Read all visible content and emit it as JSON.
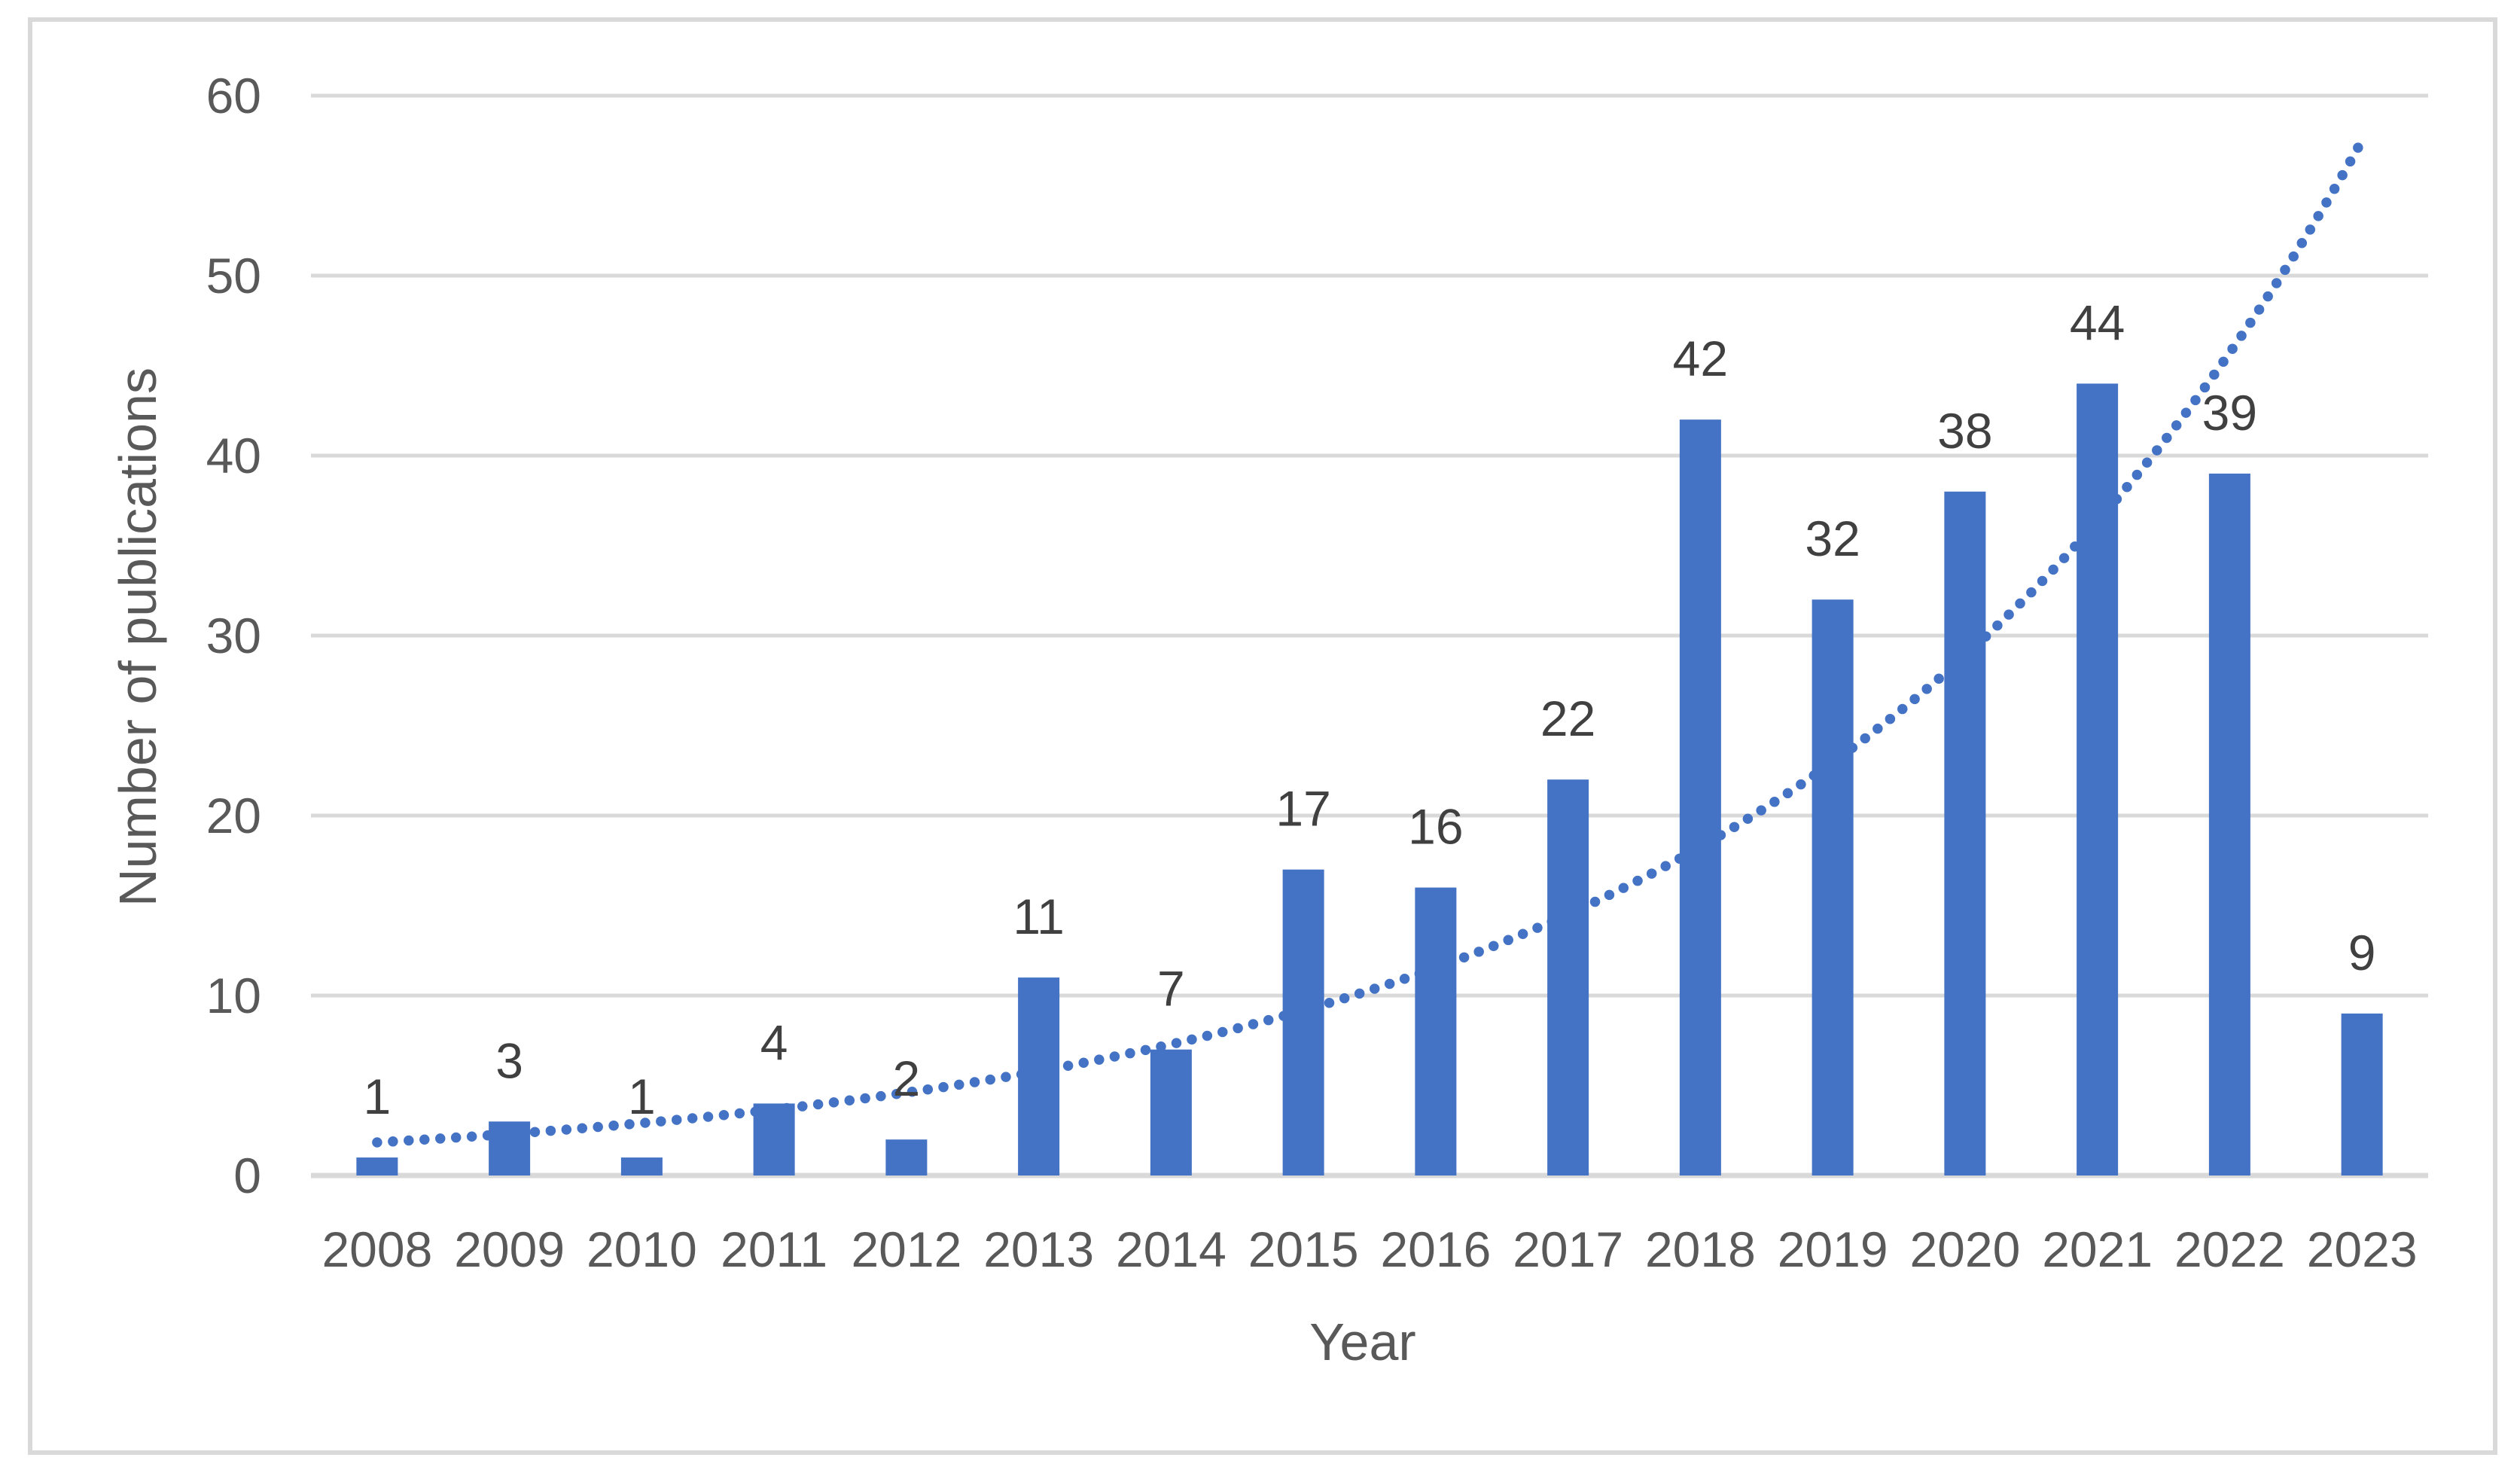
{
  "figure": {
    "x_axis_title": "Year",
    "y_axis_title": "Number of publications"
  },
  "chart_data": {
    "type": "bar",
    "title": "",
    "categories": [
      "2008",
      "2009",
      "2010",
      "2011",
      "2012",
      "2013",
      "2014",
      "2015",
      "2016",
      "2017",
      "2018",
      "2019",
      "2020",
      "2021",
      "2022",
      "2023"
    ],
    "values": [
      1,
      3,
      1,
      4,
      2,
      11,
      7,
      17,
      16,
      22,
      42,
      32,
      38,
      44,
      39,
      9
    ],
    "data_labels": [
      "1",
      "3",
      "1",
      "4",
      "2",
      "11",
      "7",
      "17",
      "16",
      "22",
      "42",
      "32",
      "38",
      "44",
      "39",
      "9"
    ],
    "xlabel": "Year",
    "ylabel": "Number of publications",
    "ylim": [
      0,
      60
    ],
    "yticks": [
      0,
      10,
      20,
      30,
      40,
      50,
      60
    ],
    "grid": true,
    "legend": false,
    "bar_color": "#4472C4",
    "label_color": "#404040",
    "axis_text_color": "#595959",
    "gridline_color": "#D9D9D9",
    "trendline": {
      "type": "exponential",
      "line_style": "dotted",
      "color": "#4472C4",
      "start_value": 1.84,
      "end_value": 57.5
    }
  }
}
